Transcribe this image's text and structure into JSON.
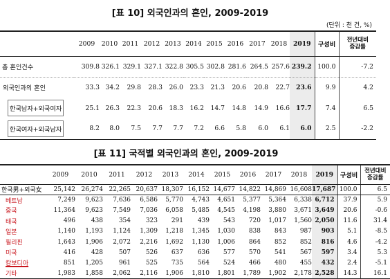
{
  "table1": {
    "title": "[표 10] 외국인과의 혼인, 2009-2019",
    "unit": "(단위 : 천 건, %)",
    "years": [
      "2009",
      "2010",
      "2011",
      "2012",
      "2013",
      "2014",
      "2015",
      "2016",
      "2017",
      "2018",
      "2019"
    ],
    "share_label": "구성비",
    "change_label_1": "전년대비",
    "change_label_2": "증감률",
    "rows": [
      {
        "label": "총 혼인건수",
        "values": [
          "309.8",
          "326.1",
          "329.1",
          "327.1",
          "322.8",
          "305.5",
          "302.8",
          "281.6",
          "264.5",
          "257.6",
          "239.2"
        ],
        "share": "100.0",
        "change": "-7.2"
      },
      {
        "label": "외국인과의 혼인",
        "values": [
          "33.3",
          "34.2",
          "29.8",
          "28.3",
          "26.0",
          "23.3",
          "21.3",
          "20.6",
          "20.8",
          "22.7",
          "23.6"
        ],
        "share": "9.9",
        "change": "4.2"
      },
      {
        "label": "한국남자+외국여자",
        "values": [
          "25.1",
          "26.3",
          "22.3",
          "20.6",
          "18.3",
          "16.2",
          "14.7",
          "14.8",
          "14.9",
          "16.6",
          "17.7"
        ],
        "share": "7.4",
        "change": "6.5"
      },
      {
        "label": "한국여자+외국남자",
        "values": [
          "8.2",
          "8.0",
          "7.5",
          "7.7",
          "7.7",
          "7.2",
          "6.6",
          "5.8",
          "6.0",
          "6.1",
          "6.0"
        ],
        "share": "2.5",
        "change": "-2.2"
      }
    ]
  },
  "table2": {
    "title": "[표 11] 국적별 외국인과의 혼인, 2009-2019",
    "years": [
      "2009",
      "2010",
      "2011",
      "2012",
      "2013",
      "2014",
      "2015",
      "2016",
      "2017",
      "2018",
      "2019"
    ],
    "share_label": "구성비",
    "change_label_1": "전년대비",
    "change_label_2": "증감률",
    "rows": [
      {
        "label": "한국男+외국女",
        "values": [
          "25,142",
          "26,274",
          "22,265",
          "20,637",
          "18,307",
          "16,152",
          "14,677",
          "14,822",
          "14,869",
          "16,608",
          "17,687"
        ],
        "share": "100.0",
        "change": "6.5"
      },
      {
        "label": "베트남",
        "values": [
          "7,249",
          "9,623",
          "7,636",
          "6,586",
          "5,770",
          "4,743",
          "4,651",
          "5,377",
          "5,364",
          "6,338",
          "6,712"
        ],
        "share": "37.9",
        "change": "5.9"
      },
      {
        "label": "중국",
        "values": [
          "11,364",
          "9,623",
          "7,549",
          "7,036",
          "6,058",
          "5,485",
          "4,545",
          "4,198",
          "3,880",
          "3,671",
          "3,649"
        ],
        "share": "20.6",
        "change": "-0.6"
      },
      {
        "label": "태국",
        "values": [
          "496",
          "438",
          "354",
          "323",
          "291",
          "439",
          "543",
          "720",
          "1,017",
          "1,560",
          "2,050"
        ],
        "share": "11.6",
        "change": "31.4"
      },
      {
        "label": "일본",
        "values": [
          "1,140",
          "1,193",
          "1,124",
          "1,309",
          "1,218",
          "1,345",
          "1,030",
          "838",
          "843",
          "987",
          "903"
        ],
        "share": "5.1",
        "change": "-8.5"
      },
      {
        "label": "필리핀",
        "values": [
          "1,643",
          "1,906",
          "2,072",
          "2,216",
          "1,692",
          "1,130",
          "1,006",
          "864",
          "852",
          "852",
          "816"
        ],
        "share": "4.6",
        "change": "-4.2"
      },
      {
        "label": "미국",
        "values": [
          "416",
          "428",
          "507",
          "526",
          "637",
          "636",
          "577",
          "570",
          "541",
          "567",
          "597"
        ],
        "share": "3.4",
        "change": "5.3"
      },
      {
        "label": "캄보디아",
        "values": [
          "851",
          "1,205",
          "961",
          "525",
          "735",
          "564",
          "524",
          "466",
          "480",
          "455",
          "432"
        ],
        "share": "2.4",
        "change": "-5.1"
      },
      {
        "label": "기타",
        "values": [
          "1,983",
          "1,858",
          "2,062",
          "2,116",
          "1,906",
          "1,810",
          "1,801",
          "1,789",
          "1,902",
          "2,178",
          "2,528"
        ],
        "share": "14.3",
        "change": "16.1"
      }
    ]
  }
}
